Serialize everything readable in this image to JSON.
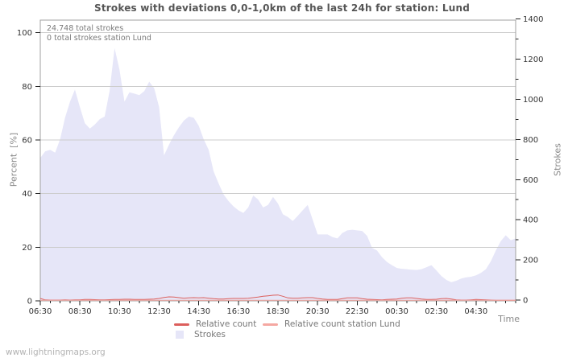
{
  "page": {
    "watermark": "www.lightningmaps.org"
  },
  "chart_data": {
    "type": "area",
    "title": "Strokes with deviations 0,0-1,0km of the last 24h for station: Lund",
    "annotations": [
      "24.748 total strokes",
      "0 total strokes station Lund"
    ],
    "grid": true,
    "legend_position": "bottom",
    "x_axis": {
      "label": "Time",
      "major_tick_labels": [
        "06:30",
        "08:30",
        "10:30",
        "12:30",
        "14:30",
        "16:30",
        "18:30",
        "20:30",
        "22:30",
        "00:30",
        "02:30",
        "04:30"
      ],
      "minor_tick_interval_minutes": 30
    },
    "y_left": {
      "label": "Percent  [%]",
      "ticks": [
        0,
        20,
        40,
        60,
        80,
        100
      ],
      "range": [
        0,
        100
      ]
    },
    "y_right": {
      "label": "Strokes",
      "ticks": [
        0,
        200,
        400,
        600,
        800,
        1000,
        1200,
        1400
      ],
      "minor_ticks": [
        100,
        300,
        500,
        700,
        900,
        1100,
        1300
      ],
      "range": [
        0,
        1400
      ]
    },
    "x": [
      "06:30",
      "06:45",
      "07:00",
      "07:15",
      "07:30",
      "07:45",
      "08:00",
      "08:15",
      "08:30",
      "08:45",
      "09:00",
      "09:15",
      "09:30",
      "09:45",
      "10:00",
      "10:15",
      "10:30",
      "10:45",
      "11:00",
      "11:15",
      "11:30",
      "11:45",
      "12:00",
      "12:15",
      "12:30",
      "12:45",
      "13:00",
      "13:15",
      "13:30",
      "13:45",
      "14:00",
      "14:15",
      "14:30",
      "14:45",
      "15:00",
      "15:15",
      "15:30",
      "15:45",
      "16:00",
      "16:15",
      "16:30",
      "16:45",
      "17:00",
      "17:15",
      "17:30",
      "17:45",
      "18:00",
      "18:15",
      "18:30",
      "18:45",
      "19:00",
      "19:15",
      "19:30",
      "19:45",
      "20:00",
      "20:15",
      "20:30",
      "20:45",
      "21:00",
      "21:15",
      "21:30",
      "21:45",
      "22:00",
      "22:15",
      "22:30",
      "22:45",
      "23:00",
      "23:15",
      "23:30",
      "23:45",
      "00:00",
      "00:15",
      "00:30",
      "00:45",
      "01:00",
      "01:15",
      "01:30",
      "01:45",
      "02:00",
      "02:15",
      "02:30",
      "02:45",
      "03:00",
      "03:15",
      "03:30",
      "03:45",
      "04:00",
      "04:15",
      "04:30",
      "04:45",
      "05:00",
      "05:15",
      "05:30",
      "05:45",
      "06:00",
      "06:15",
      "06:30"
    ],
    "series": [
      {
        "name": "Strokes",
        "type": "area",
        "axis": "right",
        "color": "#e6e6f8",
        "values": [
          708,
          741,
          748,
          734,
          801,
          908,
          988,
          1048,
          961,
          881,
          854,
          874,
          901,
          914,
          1041,
          1255,
          1148,
          988,
          1035,
          1028,
          1021,
          1041,
          1088,
          1055,
          961,
          721,
          774,
          821,
          861,
          894,
          914,
          908,
          868,
          801,
          748,
          641,
          581,
          527,
          494,
          467,
          447,
          434,
          461,
          521,
          501,
          461,
          474,
          514,
          481,
          427,
          414,
          394,
          420,
          447,
          474,
          401,
          327,
          327,
          327,
          314,
          307,
          334,
          347,
          350,
          347,
          344,
          320,
          260,
          247,
          214,
          190,
          174,
          160,
          156,
          154,
          151,
          150,
          154,
          164,
          174,
          147,
          120,
          100,
          89,
          96,
          107,
          113,
          116,
          123,
          136,
          154,
          194,
          247,
          294,
          323,
          298,
          307
        ]
      },
      {
        "name": "Relative count",
        "type": "line",
        "axis": "left",
        "color": "#dc5f5c",
        "values": [
          0.9,
          0.35,
          0.3,
          0.3,
          0.3,
          0.35,
          0.3,
          0.35,
          0.4,
          0.5,
          0.5,
          0.45,
          0.4,
          0.4,
          0.45,
          0.5,
          0.55,
          0.6,
          0.6,
          0.5,
          0.5,
          0.5,
          0.6,
          0.65,
          0.9,
          1.3,
          1.5,
          1.4,
          1.2,
          1.0,
          1.1,
          1.2,
          1.1,
          1.2,
          1.0,
          0.8,
          0.7,
          0.7,
          0.8,
          0.9,
          0.9,
          0.9,
          1.0,
          1.2,
          1.4,
          1.7,
          1.9,
          2.1,
          2.2,
          1.7,
          1.1,
          1.0,
          1.0,
          1.1,
          1.2,
          1.2,
          0.9,
          0.7,
          0.55,
          0.5,
          0.55,
          0.8,
          1.1,
          1.15,
          1.1,
          0.8,
          0.6,
          0.5,
          0.45,
          0.4,
          0.5,
          0.6,
          0.7,
          1.0,
          1.1,
          1.1,
          0.9,
          0.7,
          0.55,
          0.5,
          0.6,
          0.85,
          0.9,
          0.7,
          0.4,
          0.3,
          0.3,
          0.4,
          0.5,
          0.45,
          0.35,
          0.3,
          0.25,
          0.2,
          0.15,
          0.15,
          0.1
        ]
      },
      {
        "name": "Relative count station Lund",
        "type": "line",
        "axis": "left",
        "color": "#f5a8a2",
        "values": [
          0,
          0,
          0,
          0,
          0,
          0,
          0,
          0,
          0,
          0,
          0,
          0,
          0,
          0,
          0,
          0,
          0,
          0,
          0,
          0,
          0,
          0,
          0,
          0,
          0,
          0,
          0,
          0,
          0,
          0,
          0,
          0,
          0,
          0,
          0,
          0,
          0,
          0,
          0,
          0,
          0,
          0,
          0,
          0,
          0,
          0,
          0,
          0,
          0,
          0,
          0,
          0,
          0,
          0,
          0,
          0,
          0,
          0,
          0,
          0,
          0,
          0,
          0,
          0,
          0,
          0,
          0,
          0,
          0,
          0,
          0,
          0,
          0,
          0,
          0,
          0,
          0,
          0,
          0,
          0,
          0,
          0,
          0,
          0,
          0,
          0,
          0,
          0,
          0,
          0,
          0,
          0,
          0,
          0,
          0,
          0,
          0
        ]
      }
    ],
    "colors": {
      "gridline": "#cccccc",
      "plot_border": "#a0a0a0",
      "tick": "#222222",
      "tick_label": "#333333",
      "text_muted": "#7a7a7a"
    }
  }
}
